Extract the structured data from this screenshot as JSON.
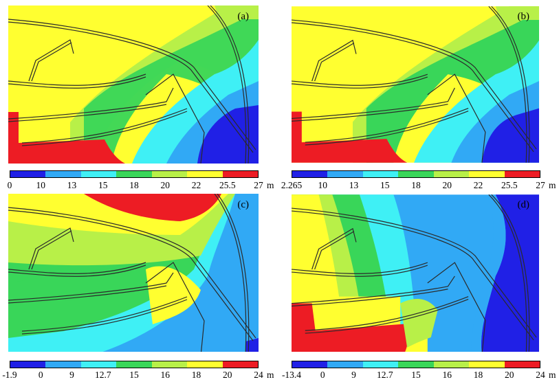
{
  "colors": {
    "red": "#ed1c24",
    "yellow": "#ffff30",
    "lightgreen": "#b8f048",
    "green": "#39d659",
    "cyan": "#3ff0f5",
    "lightblue": "#31a9f5",
    "blue": "#2020e6",
    "stroke": "#2a2a2a"
  },
  "panels": [
    {
      "label": "(a)",
      "scale": [
        "0",
        "10",
        "13",
        "15",
        "18",
        "20",
        "22",
        "25.5",
        "27"
      ],
      "unit": "m"
    },
    {
      "label": "(b)",
      "scale": [
        "2.265",
        "10",
        "13",
        "15",
        "18",
        "20",
        "22",
        "25.5",
        "27"
      ],
      "unit": "m"
    },
    {
      "label": "(c)",
      "scale": [
        "-1.9",
        "0",
        "9",
        "12.7",
        "15",
        "16",
        "18",
        "20",
        "24"
      ],
      "unit": "m"
    },
    {
      "label": "(d)",
      "scale": [
        "-13.4",
        "0",
        "9",
        "12.7",
        "15",
        "16",
        "18",
        "20",
        "24"
      ],
      "unit": "m"
    }
  ],
  "colorbar_colors": [
    "blue",
    "lightblue",
    "cyan",
    "green",
    "lightgreen",
    "yellow",
    "red"
  ]
}
